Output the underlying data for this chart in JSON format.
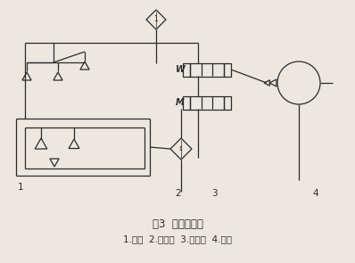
{
  "title": "图3  真空气路图",
  "legend": "1.吸盘  2.过滤器  3.换向阀  4.气泵",
  "bg_color": "#ede8df",
  "line_color": "#2a2a2a",
  "fig_width": 3.98,
  "fig_height": 2.95,
  "dpi": 100
}
